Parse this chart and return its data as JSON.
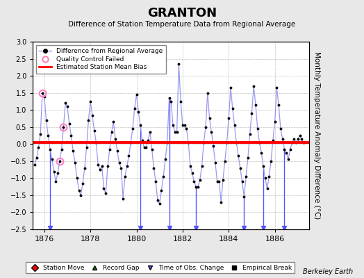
{
  "title": "GRANTON",
  "subtitle": "Difference of Station Temperature Data from Regional Average",
  "ylabel": "Monthly Temperature Anomaly Difference (°C)",
  "xlabel_years": [
    1876,
    1878,
    1880,
    1882,
    1884,
    1886
  ],
  "xmin": 1875.5,
  "xmax": 1887.5,
  "ymin": -2.5,
  "ymax": 3.0,
  "yticks": [
    -2.5,
    -2,
    -1.5,
    -1,
    -0.5,
    0,
    0.5,
    1,
    1.5,
    2,
    2.5,
    3
  ],
  "bias_value": 0.05,
  "background_color": "#e8e8e8",
  "plot_bg_color": "#ffffff",
  "line_color": "#9999ee",
  "dot_color": "#000000",
  "bias_color": "#ff0000",
  "qc_color": "#ff80c0",
  "obs_line_color": "#5555ff",
  "time_data": [
    1875.583,
    1875.667,
    1875.75,
    1875.833,
    1875.917,
    1876.0,
    1876.083,
    1876.167,
    1876.25,
    1876.333,
    1876.417,
    1876.5,
    1876.583,
    1876.667,
    1876.75,
    1876.833,
    1876.917,
    1877.0,
    1877.083,
    1877.167,
    1877.25,
    1877.333,
    1877.417,
    1877.5,
    1877.583,
    1877.667,
    1877.75,
    1877.833,
    1877.917,
    1878.0,
    1878.083,
    1878.167,
    1878.25,
    1878.333,
    1878.417,
    1878.5,
    1878.583,
    1878.667,
    1878.75,
    1878.833,
    1878.917,
    1879.0,
    1879.083,
    1879.167,
    1879.25,
    1879.333,
    1879.417,
    1879.5,
    1879.583,
    1879.667,
    1879.75,
    1879.833,
    1879.917,
    1880.0,
    1880.083,
    1880.167,
    1880.25,
    1880.333,
    1880.417,
    1880.5,
    1880.583,
    1880.667,
    1880.75,
    1880.833,
    1880.917,
    1881.0,
    1881.083,
    1881.167,
    1881.25,
    1881.333,
    1881.417,
    1881.5,
    1881.583,
    1881.667,
    1881.75,
    1881.833,
    1881.917,
    1882.0,
    1882.083,
    1882.167,
    1882.25,
    1882.333,
    1882.417,
    1882.5,
    1882.583,
    1882.667,
    1882.75,
    1882.833,
    1882.917,
    1883.0,
    1883.083,
    1883.167,
    1883.25,
    1883.333,
    1883.417,
    1883.5,
    1883.583,
    1883.667,
    1883.75,
    1883.833,
    1883.917,
    1884.0,
    1884.083,
    1884.167,
    1884.25,
    1884.333,
    1884.417,
    1884.5,
    1884.583,
    1884.667,
    1884.75,
    1884.833,
    1884.917,
    1885.0,
    1885.083,
    1885.167,
    1885.25,
    1885.333,
    1885.417,
    1885.5,
    1885.583,
    1885.667,
    1885.75,
    1885.833,
    1885.917,
    1886.0,
    1886.083,
    1886.167,
    1886.25,
    1886.333,
    1886.417,
    1886.5,
    1886.583,
    1886.667,
    1886.75,
    1886.833,
    1886.917,
    1887.0,
    1887.083,
    1887.167,
    1887.25
  ],
  "values": [
    -0.6,
    -0.4,
    -0.1,
    0.3,
    1.5,
    1.4,
    0.7,
    0.25,
    -0.15,
    -0.45,
    -0.8,
    -1.1,
    -0.85,
    -0.5,
    -0.15,
    0.5,
    1.2,
    1.1,
    0.6,
    0.25,
    -0.2,
    -0.55,
    -1.0,
    -1.35,
    -1.5,
    -1.15,
    -0.7,
    -0.1,
    0.7,
    1.25,
    0.85,
    0.4,
    0.05,
    -0.6,
    -0.75,
    -0.65,
    -1.3,
    -1.45,
    -0.65,
    -0.15,
    0.35,
    0.65,
    0.15,
    -0.2,
    -0.55,
    -0.7,
    -1.6,
    -0.95,
    -0.65,
    -0.35,
    0.05,
    0.45,
    1.05,
    1.45,
    0.95,
    0.55,
    0.1,
    -0.1,
    -0.1,
    0.1,
    0.35,
    -0.15,
    -0.7,
    -1.1,
    -1.65,
    -1.75,
    -1.35,
    -0.95,
    -0.45,
    0.05,
    1.35,
    1.25,
    0.55,
    0.35,
    0.35,
    2.35,
    1.25,
    0.55,
    0.55,
    0.45,
    0.05,
    -0.65,
    -0.85,
    -1.1,
    -1.25,
    -1.25,
    -1.05,
    -0.65,
    0.05,
    0.5,
    1.5,
    0.75,
    0.35,
    -0.05,
    -0.55,
    -1.1,
    -1.1,
    -1.7,
    -1.05,
    -0.5,
    0.05,
    0.75,
    1.65,
    1.05,
    0.55,
    0.05,
    -0.35,
    -0.7,
    -1.1,
    -1.55,
    -0.95,
    -0.4,
    0.3,
    0.9,
    1.7,
    1.15,
    0.45,
    0.05,
    -0.25,
    -0.65,
    -1.0,
    -1.3,
    -0.95,
    -0.5,
    0.1,
    0.65,
    1.65,
    1.15,
    0.45,
    0.15,
    -0.15,
    -0.25,
    -0.45,
    -0.15,
    0.05,
    0.15,
    0.05,
    0.15,
    0.25,
    0.15,
    0.05
  ],
  "qc_failed_times": [
    1875.917,
    1876.667,
    1876.833
  ],
  "qc_failed_values": [
    1.5,
    -0.5,
    0.5
  ],
  "obs_change_times": [
    1876.25,
    1880.167,
    1881.417,
    1882.583,
    1884.667,
    1885.5,
    1886.417
  ],
  "berkeley_earth_text": "Berkeley Earth"
}
